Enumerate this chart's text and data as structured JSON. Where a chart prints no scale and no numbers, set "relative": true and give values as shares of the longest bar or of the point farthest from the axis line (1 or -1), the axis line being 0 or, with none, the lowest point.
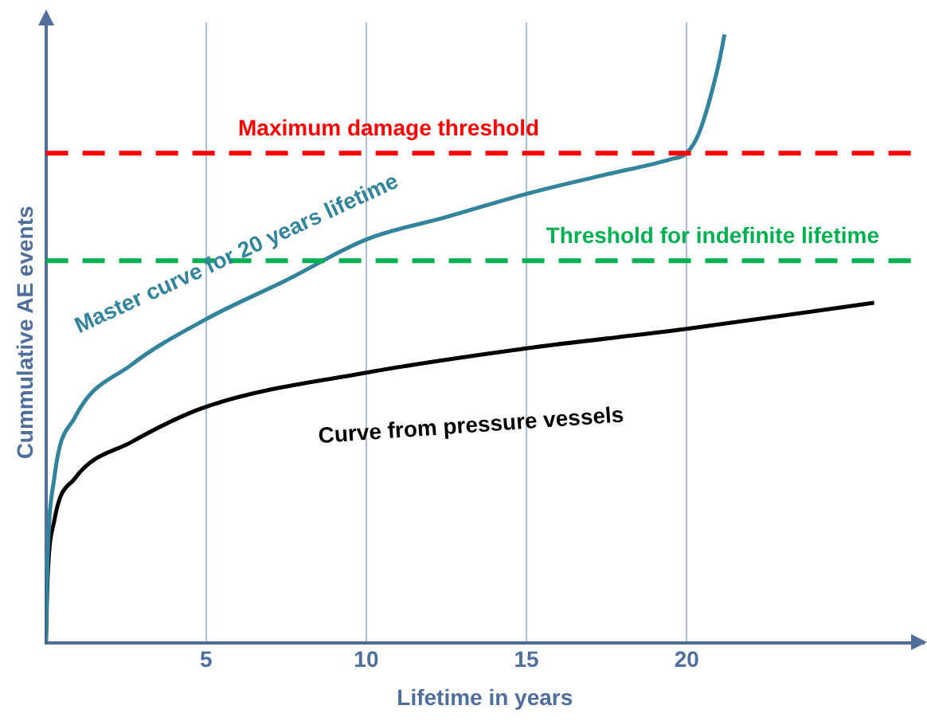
{
  "chart_data": {
    "type": "line",
    "relative": true,
    "xlabel": "Lifetime in years",
    "ylabel": "Cummulative AE events",
    "xlim": [
      0,
      27.4
    ],
    "xticks": [
      5,
      10,
      15,
      20
    ],
    "grid": "x",
    "legend": false,
    "marker": "none",
    "line_style": "solid",
    "series": [
      {
        "name": "Master curve for 20 years lifetime",
        "color": "#31849b",
        "x": [
          0,
          0.05,
          0.26,
          0.9,
          2.67,
          5,
          7.5,
          10,
          12.5,
          15,
          17.5,
          19.5,
          20,
          20.4,
          21,
          21.18
        ],
        "values": [
          0,
          0.13,
          0.27,
          0.37,
          0.457,
          0.532,
          0.596,
          0.663,
          0.7,
          0.738,
          0.77,
          0.795,
          0.805,
          0.84,
          0.952,
          1
        ]
      },
      {
        "name": "Curve from pressure vessels",
        "color": "#000000",
        "x": [
          0,
          0.05,
          0.26,
          0.9,
          2.67,
          5,
          10,
          15,
          20,
          25.85
        ],
        "values": [
          0,
          0.1,
          0.2,
          0.27,
          0.33,
          0.388,
          0.444,
          0.484,
          0.516,
          0.559
        ]
      }
    ],
    "ref_lines": [
      {
        "axis": "y",
        "value": 0.805,
        "label": "Maximum damage threshold",
        "color": "#ff0000",
        "line_style": "dashed"
      },
      {
        "axis": "y",
        "value": 0.628,
        "label": "Threshold for indefinite lifetime",
        "color": "#00b050",
        "line_style": "dashed"
      }
    ]
  }
}
